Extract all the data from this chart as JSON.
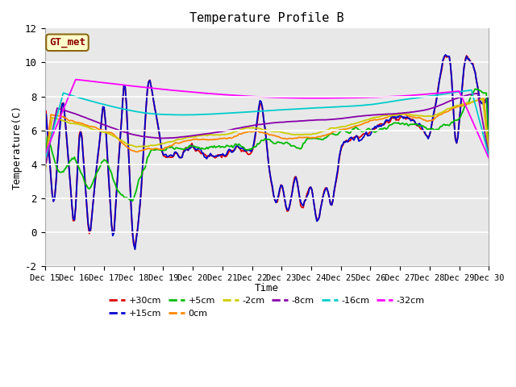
{
  "title": "Temperature Profile B",
  "xlabel": "Time",
  "ylabel": "Temperature(C)",
  "ylim": [
    -2,
    12
  ],
  "xlim": [
    0,
    15
  ],
  "xtick_labels": [
    "Dec 15",
    "Dec 16",
    "Dec 17",
    "Dec 18",
    "Dec 19",
    "Dec 20",
    "Dec 21",
    "Dec 22",
    "Dec 23",
    "Dec 24",
    "Dec 25",
    "Dec 26",
    "Dec 27",
    "Dec 28",
    "Dec 29",
    "Dec 30"
  ],
  "annotation": "GT_met",
  "bg_color": "#e8e8e8",
  "plot_bg": "#e8e8e8",
  "series_colors": {
    "+30cm": "#dd0000",
    "+15cm": "#0000cc",
    "+5cm": "#00bb00",
    "0cm": "#ff8800",
    "-2cm": "#cccc00",
    "-8cm": "#8800aa",
    "-16cm": "#00cccc",
    "-32cm": "#ff00ff"
  },
  "legend_ncol": 6
}
